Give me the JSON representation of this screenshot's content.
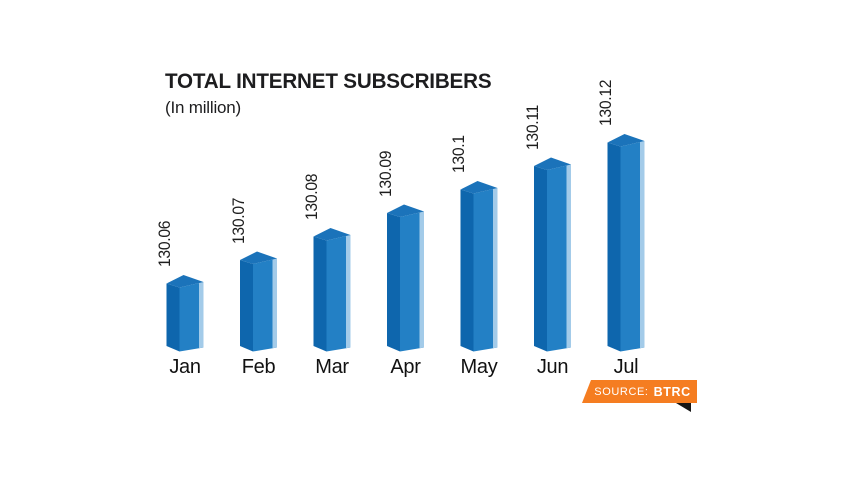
{
  "title": "TOTAL INTERNET SUBSCRIBERS",
  "subtitle": "(In million)",
  "source": {
    "prefix": "SOURCE:",
    "org": "BTRC",
    "badge_color": "#F57D21",
    "fold_color": "#161616"
  },
  "chart_data": {
    "type": "bar",
    "title": "TOTAL INTERNET SUBSCRIBERS",
    "subtitle": "(In million)",
    "categories": [
      "Jan",
      "Feb",
      "Mar",
      "Apr",
      "May",
      "Jun",
      "Jul"
    ],
    "values": [
      130.06,
      130.07,
      130.08,
      130.09,
      130.1,
      130.11,
      130.12
    ],
    "value_labels": [
      "130.06",
      "130.07",
      "130.08",
      "130.09",
      "130.1",
      "130.11",
      "130.12"
    ],
    "value_label_rotation_deg": -90,
    "style": "3d-column",
    "axis_note": "no visible axes or gridlines; truncated value scale",
    "colors": {
      "front_face": "#2380C5",
      "side_face": "#0E66AD",
      "top_face": "#1B73BA",
      "edge_highlight": "#A3CBE9",
      "label_text": "#1e1e1e"
    }
  }
}
